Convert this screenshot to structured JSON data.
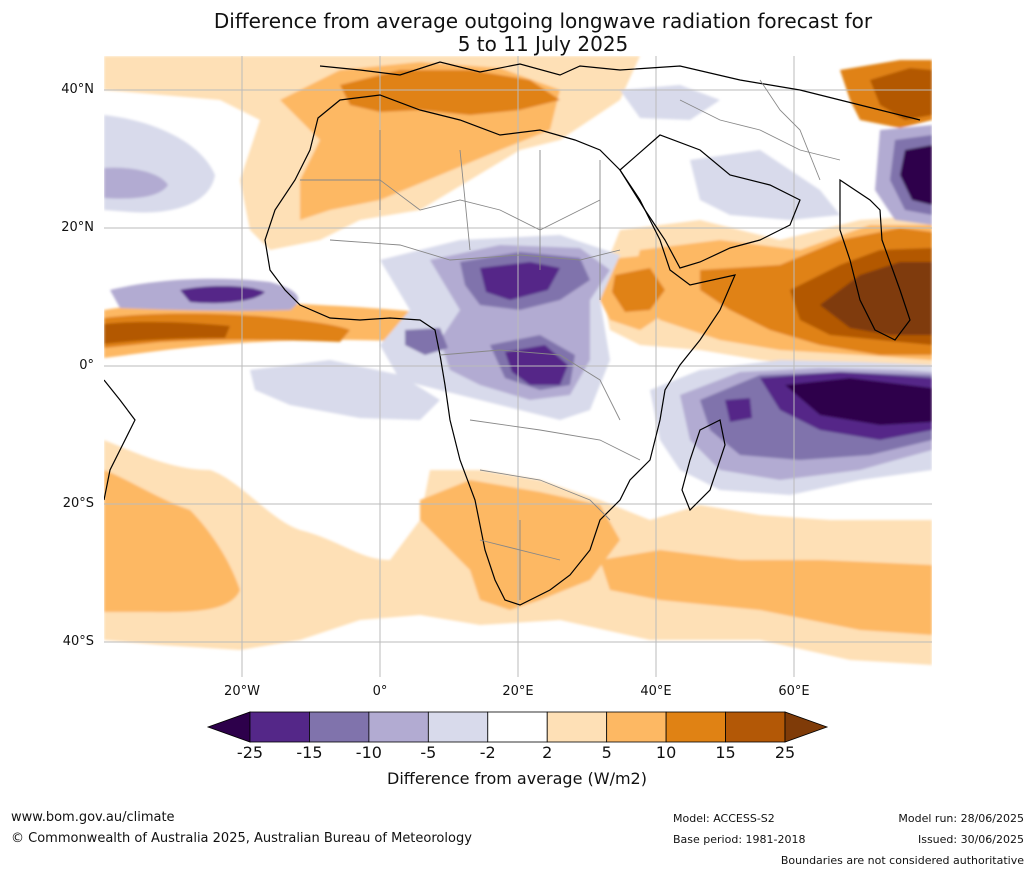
{
  "title": {
    "line1": "Difference from average outgoing longwave radiation forecast for",
    "line2": "5 to 11 July 2025"
  },
  "map": {
    "lat_labels": [
      "40°N",
      "20°N",
      "0°",
      "20°S",
      "40°S"
    ],
    "lon_labels": [
      "20°W",
      "0°",
      "20°E",
      "40°E",
      "60°E"
    ],
    "gridlines": true
  },
  "colorbar": {
    "title": "Difference from average (W/m2)",
    "ticks": [
      "-25",
      "-15",
      "-10",
      "-5",
      "-2",
      "2",
      "5",
      "10",
      "15",
      "25"
    ],
    "colors": [
      "#2d004b",
      "#542788",
      "#8073ac",
      "#b2abd2",
      "#d8daeb",
      "#ffffff",
      "#fee0b6",
      "#fdb863",
      "#e08214",
      "#b35806",
      "#7f3b08"
    ]
  },
  "footer": {
    "website": "www.bom.gov.au/climate",
    "copyright": "© Commonwealth of Australia 2025, Australian Bureau of Meteorology",
    "model": "Model: ACCESS-S2",
    "base_period": "Base period: 1981-2018",
    "model_run": "Model run: 28/06/2025",
    "issued": "Issued: 30/06/2025",
    "disclaimer": "Boundaries are not considered authoritative"
  }
}
